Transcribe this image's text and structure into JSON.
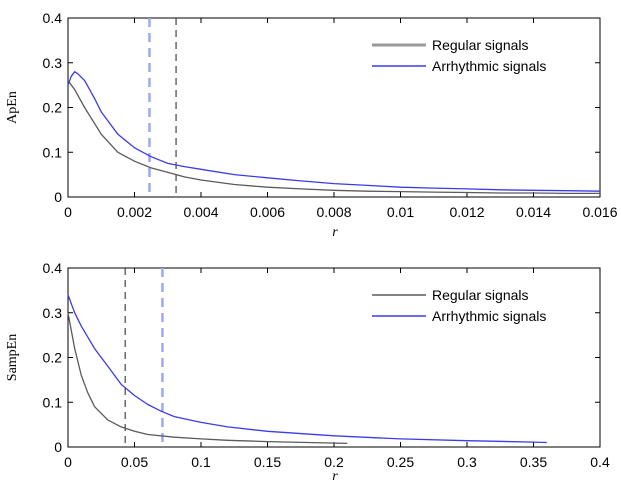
{
  "chart_data": [
    {
      "type": "line",
      "ylabel": "ApEn",
      "xlabel": "r",
      "xlim": [
        0,
        0.016
      ],
      "ylim": [
        0,
        0.4
      ],
      "xticks": [
        "0",
        "0.002",
        "0.004",
        "0.006",
        "0.008",
        "0.01",
        "0.012",
        "0.014",
        "0.016"
      ],
      "yticks": [
        "0",
        "0.1",
        "0.2",
        "0.3",
        "0.4"
      ],
      "legend_position": "top-right",
      "vlines": [
        {
          "x": 0.00245,
          "color": "#9fa8f2",
          "style": "dashed"
        },
        {
          "x": 0.00325,
          "color": "#444444",
          "style": "dashed"
        }
      ],
      "series": [
        {
          "name": "Regular signals",
          "color": "#5a5a5a",
          "x": [
            0,
            0.0002,
            0.0005,
            0.001,
            0.0015,
            0.002,
            0.0025,
            0.003,
            0.0035,
            0.004,
            0.005,
            0.006,
            0.007,
            0.008,
            0.009,
            0.01,
            0.011,
            0.012,
            0.013,
            0.014,
            0.015,
            0.016
          ],
          "y": [
            0.26,
            0.24,
            0.2,
            0.14,
            0.1,
            0.08,
            0.065,
            0.055,
            0.045,
            0.038,
            0.028,
            0.022,
            0.018,
            0.015,
            0.013,
            0.012,
            0.011,
            0.01,
            0.009,
            0.009,
            0.008,
            0.008
          ]
        },
        {
          "name": "Arrhythmic signals",
          "color": "#3b3bea",
          "x": [
            0,
            0.0001,
            0.0002,
            0.0003,
            0.0005,
            0.0008,
            0.001,
            0.0015,
            0.002,
            0.0025,
            0.003,
            0.0035,
            0.004,
            0.005,
            0.006,
            0.007,
            0.008,
            0.009,
            0.01,
            0.011,
            0.012,
            0.013,
            0.014,
            0.015,
            0.016
          ],
          "y": [
            0.25,
            0.27,
            0.28,
            0.275,
            0.26,
            0.22,
            0.19,
            0.14,
            0.11,
            0.09,
            0.075,
            0.068,
            0.062,
            0.05,
            0.043,
            0.036,
            0.03,
            0.026,
            0.022,
            0.02,
            0.018,
            0.016,
            0.015,
            0.014,
            0.013
          ]
        }
      ]
    },
    {
      "type": "line",
      "ylabel": "SampEn",
      "xlabel": "r",
      "xlim": [
        0,
        0.4
      ],
      "ylim": [
        0,
        0.4
      ],
      "xticks": [
        "0",
        "0.05",
        "0.1",
        "0.15",
        "0.2",
        "0.25",
        "0.3",
        "0.35",
        "0.4"
      ],
      "yticks": [
        "0",
        "0.1",
        "0.2",
        "0.3",
        "0.4"
      ],
      "legend_position": "top-right",
      "vlines": [
        {
          "x": 0.043,
          "color": "#444444",
          "style": "dashed"
        },
        {
          "x": 0.071,
          "color": "#9fa8f2",
          "style": "dashed"
        }
      ],
      "series": [
        {
          "name": "Regular signals",
          "color": "#5a5a5a",
          "x": [
            0,
            0.005,
            0.01,
            0.015,
            0.02,
            0.03,
            0.04,
            0.05,
            0.06,
            0.08,
            0.1,
            0.12,
            0.15,
            0.18,
            0.21
          ],
          "y": [
            0.3,
            0.22,
            0.16,
            0.12,
            0.09,
            0.06,
            0.045,
            0.035,
            0.028,
            0.022,
            0.018,
            0.015,
            0.012,
            0.01,
            0.008
          ]
        },
        {
          "name": "Arrhythmic signals",
          "color": "#3b3bea",
          "x": [
            0,
            0.005,
            0.01,
            0.02,
            0.03,
            0.04,
            0.05,
            0.06,
            0.07,
            0.08,
            0.1,
            0.12,
            0.15,
            0.2,
            0.25,
            0.3,
            0.35,
            0.36
          ],
          "y": [
            0.34,
            0.3,
            0.27,
            0.22,
            0.18,
            0.14,
            0.115,
            0.095,
            0.08,
            0.068,
            0.055,
            0.045,
            0.035,
            0.025,
            0.018,
            0.014,
            0.011,
            0.01
          ]
        }
      ]
    }
  ]
}
